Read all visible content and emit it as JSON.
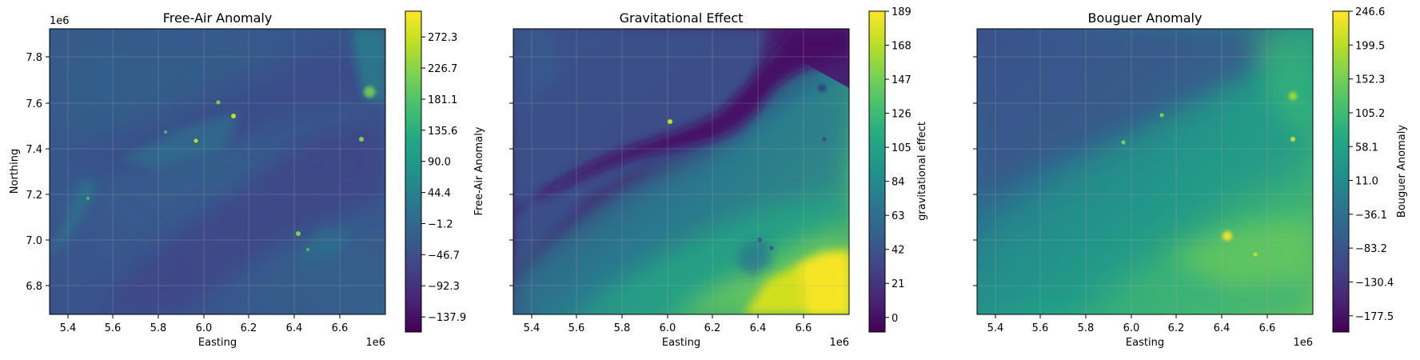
{
  "figure": {
    "colormap": [
      "#440154",
      "#482475",
      "#414487",
      "#355f8d",
      "#2a788e",
      "#21918c",
      "#22a884",
      "#44bf70",
      "#7ad151",
      "#bddf26",
      "#fde725"
    ],
    "grid": true
  },
  "chart_data": [
    {
      "type": "heatmap",
      "title": "Free-Air Anomaly",
      "xlabel": "Easting",
      "ylabel": "Northing",
      "x_offset_text": "1e6",
      "y_offset_text": "1e6",
      "xlim": [
        5.3,
        6.78
      ],
      "ylim": [
        6.68,
        7.93
      ],
      "x_ticks": [
        "5.4",
        "5.6",
        "5.8",
        "6.0",
        "6.2",
        "6.4",
        "6.6"
      ],
      "y_ticks": [
        "6.8",
        "7.0",
        "7.2",
        "7.4",
        "7.6",
        "7.8"
      ],
      "colorbar": {
        "label": "Free-Air Anomaly",
        "min": -160,
        "max": 310,
        "ticks": [
          "−137.9",
          "−92.3",
          "−46.7",
          "−1.2",
          "44.4",
          "90.0",
          "135.6",
          "181.1",
          "226.7",
          "272.3"
        ]
      },
      "value_range": [
        -137.9,
        300
      ]
    },
    {
      "type": "heatmap",
      "title": "Gravitational Effect",
      "xlabel": "Easting",
      "x_offset_text": "1e6",
      "xlim": [
        5.3,
        6.78
      ],
      "ylim": [
        6.68,
        7.93
      ],
      "x_ticks": [
        "5.4",
        "5.6",
        "5.8",
        "6.0",
        "6.2",
        "6.4",
        "6.6"
      ],
      "y_ticks": [
        "",
        "",
        "",
        "",
        "",
        ""
      ],
      "colorbar": {
        "label": "gravitational effect",
        "min": -9,
        "max": 189,
        "ticks": [
          "0",
          "21",
          "42",
          "63",
          "84",
          "105",
          "126",
          "147",
          "168",
          "189"
        ]
      },
      "value_range": [
        -9,
        189
      ]
    },
    {
      "type": "heatmap",
      "title": "Bouguer Anomaly",
      "xlabel": "Easting",
      "x_offset_text": "1e6",
      "xlim": [
        5.3,
        6.78
      ],
      "ylim": [
        6.68,
        7.93
      ],
      "x_ticks": [
        "5.4",
        "5.6",
        "5.8",
        "6.0",
        "6.2",
        "6.4",
        "6.6"
      ],
      "y_ticks": [
        "",
        "",
        "",
        "",
        "",
        ""
      ],
      "colorbar": {
        "label": "Bouguer Anomaly",
        "min": -200,
        "max": 246.6,
        "ticks": [
          "−177.5",
          "−130.4",
          "−83.2",
          "−36.1",
          "11.0",
          "58.1",
          "105.2",
          "152.3",
          "199.5",
          "246.6"
        ]
      },
      "value_range": [
        -200,
        246.6
      ]
    }
  ]
}
